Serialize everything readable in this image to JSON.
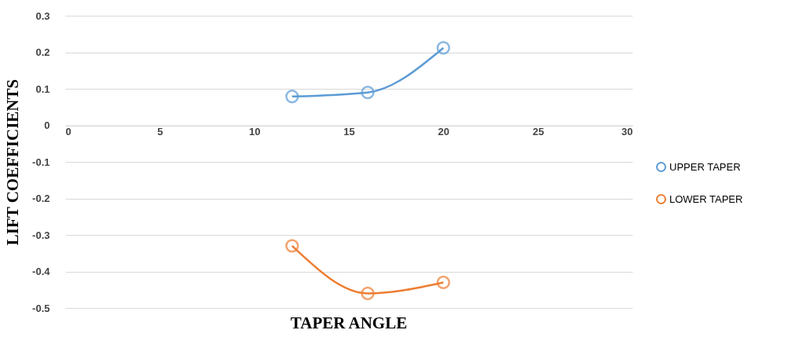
{
  "chart_data": {
    "type": "line",
    "xlabel": "TAPER ANGLE",
    "ylabel": "LIFT COEFFICIENTS",
    "x": [
      12,
      16,
      20
    ],
    "series": [
      {
        "name": "UPPER TAPER",
        "color": "#5b9bd5",
        "values": [
          0.079,
          0.09,
          0.212
        ]
      },
      {
        "name": "LOWER TAPER",
        "color": "#ed7d31",
        "values": [
          -0.33,
          -0.46,
          -0.43
        ]
      }
    ],
    "xlim": [
      0,
      30
    ],
    "xticks": [
      0,
      5,
      10,
      15,
      20,
      25,
      30
    ],
    "ylim": [
      -0.5,
      0.3
    ],
    "yticks": [
      -0.5,
      -0.4,
      -0.3,
      -0.2,
      -0.1,
      {
        "value": 0,
        "label": "0"
      },
      0.1,
      0.2,
      0.3
    ],
    "grid": "y",
    "legend": "right",
    "marker": "circle",
    "line_style": "solid"
  }
}
